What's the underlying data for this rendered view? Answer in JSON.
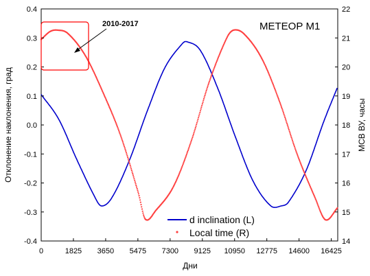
{
  "chart_data": {
    "type": "line",
    "title": "МЕТЕОР М1",
    "xlabel": "Дни",
    "ylabel_left": "Отклонение наклонения, град",
    "ylabel_right": "МСВ ВУ, часы",
    "xlim": [
      0,
      16790
    ],
    "ylim_left": [
      -0.4,
      0.4
    ],
    "ylim_right": [
      14,
      22
    ],
    "x_ticks": [
      0,
      1825,
      3650,
      5475,
      7300,
      9125,
      10950,
      12775,
      14600,
      16425
    ],
    "y_ticks_left": [
      -0.4,
      -0.3,
      -0.2,
      -0.1,
      0.0,
      0.1,
      0.2,
      0.3,
      0.4
    ],
    "y_ticks_right": [
      14,
      15,
      16,
      17,
      18,
      19,
      20,
      21,
      22
    ],
    "grid": false,
    "legend": {
      "position": "bottom-right"
    },
    "annotation": {
      "text": "2010-2017",
      "points_to_x": 1900,
      "points_to_y_right": 20.9
    },
    "colors": {
      "inclination": "#0000cc",
      "local_time": "#ff4040",
      "annotation_box": "#ff0000"
    },
    "series": [
      {
        "name": "d inclination (L)",
        "axis": "left",
        "style": "line",
        "x": [
          0,
          1000,
          2000,
          3000,
          3400,
          4000,
          5000,
          6000,
          7000,
          8000,
          8250,
          9000,
          10000,
          11000,
          12000,
          13000,
          13600,
          14000,
          15000,
          16000,
          16790
        ],
        "y": [
          0.105,
          0.019,
          -0.117,
          -0.244,
          -0.279,
          -0.251,
          -0.121,
          0.047,
          0.197,
          0.281,
          0.287,
          0.258,
          0.126,
          -0.042,
          -0.194,
          -0.279,
          -0.279,
          -0.266,
          -0.157,
          0.012,
          0.132
        ]
      },
      {
        "name": "Local time (R)",
        "axis": "right",
        "style": "dotted",
        "x": [
          0,
          500,
          900,
          1500,
          2500,
          3500,
          4500,
          5500,
          5900,
          6500,
          7500,
          8500,
          9500,
          10500,
          10900,
          11500,
          12500,
          13500,
          14500,
          15500,
          16100,
          16790
        ],
        "y": [
          20.95,
          21.22,
          21.27,
          21.16,
          20.39,
          19.12,
          17.63,
          15.66,
          14.75,
          15.06,
          15.89,
          17.45,
          19.46,
          20.99,
          21.27,
          21.13,
          20.28,
          18.8,
          16.98,
          15.5,
          14.73,
          15.15
        ]
      }
    ]
  }
}
